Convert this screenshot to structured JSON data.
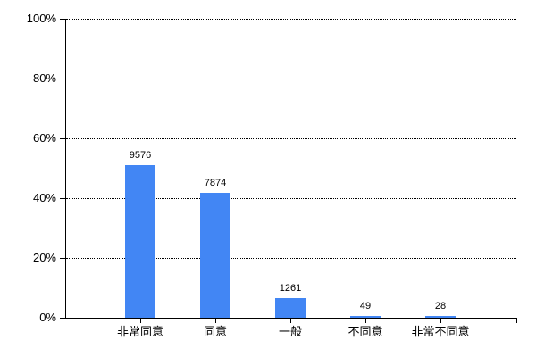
{
  "chart_data": {
    "type": "bar",
    "title": "",
    "xlabel": "",
    "ylabel": "",
    "categories": [
      "非常同意",
      "同意",
      "一般",
      "不同意",
      "非常不同意"
    ],
    "values": [
      9576,
      7874,
      1261,
      49,
      28
    ],
    "value_labels": [
      "9576",
      "7874",
      "1261",
      "49",
      "28"
    ],
    "percent_heights": [
      50.97,
      41.91,
      6.71,
      0.26,
      0.15
    ],
    "ylim": [
      0,
      100
    ],
    "y_ticks": [
      {
        "value": 0,
        "label": "0%"
      },
      {
        "value": 20,
        "label": "20%"
      },
      {
        "value": 40,
        "label": "40%"
      },
      {
        "value": 60,
        "label": "60%"
      },
      {
        "value": 80,
        "label": "80%"
      },
      {
        "value": 100,
        "label": "100%"
      }
    ],
    "grid": "horizontal-dotted",
    "legend": "none",
    "bar_color": "#4286f4",
    "axis_color": "#000000",
    "text_color": "#000000"
  }
}
